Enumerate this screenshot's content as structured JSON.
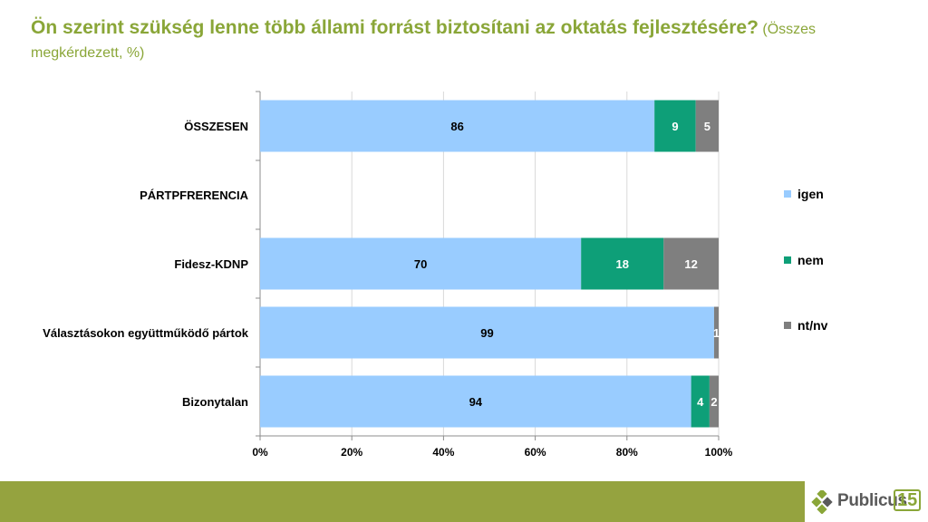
{
  "title": {
    "main": "Ön szerint szükség lenne több állami forrást biztosítani az oktatás fejlesztésére?",
    "sub": "(Összes megkérdezett, %)"
  },
  "chart_data": {
    "type": "bar",
    "orientation": "horizontal",
    "stacked": "percent",
    "categories": [
      "ÖSSZESEN",
      "PÁRTPFRERENCIA",
      "Fidesz-KDNP",
      "Választásokon együttműködő pártok",
      "Bizonytalan"
    ],
    "series": [
      {
        "name": "igen",
        "color": "#99ccff",
        "values": [
          86,
          null,
          70,
          99,
          94
        ],
        "labels": [
          "86",
          "",
          "70",
          "99",
          "94"
        ]
      },
      {
        "name": "nem",
        "color": "#0e9f78",
        "values": [
          9,
          null,
          18,
          0,
          4
        ],
        "labels": [
          "9",
          "",
          "18",
          "",
          "4"
        ]
      },
      {
        "name": "nt/nv",
        "color": "#7f7f7f",
        "values": [
          5,
          null,
          12,
          1,
          2
        ],
        "labels": [
          "5",
          "",
          "12",
          "1",
          "2"
        ]
      }
    ],
    "xlim": [
      0,
      100
    ],
    "x_ticks": [
      "0%",
      "20%",
      "40%",
      "60%",
      "80%",
      "100%"
    ],
    "grid": true,
    "legend_position": "right"
  },
  "colors": {
    "title": "#8aa638",
    "footer": "#95a33f",
    "grid": "#d9d9d9"
  },
  "logo": {
    "text": "Publicus",
    "number": "15"
  }
}
